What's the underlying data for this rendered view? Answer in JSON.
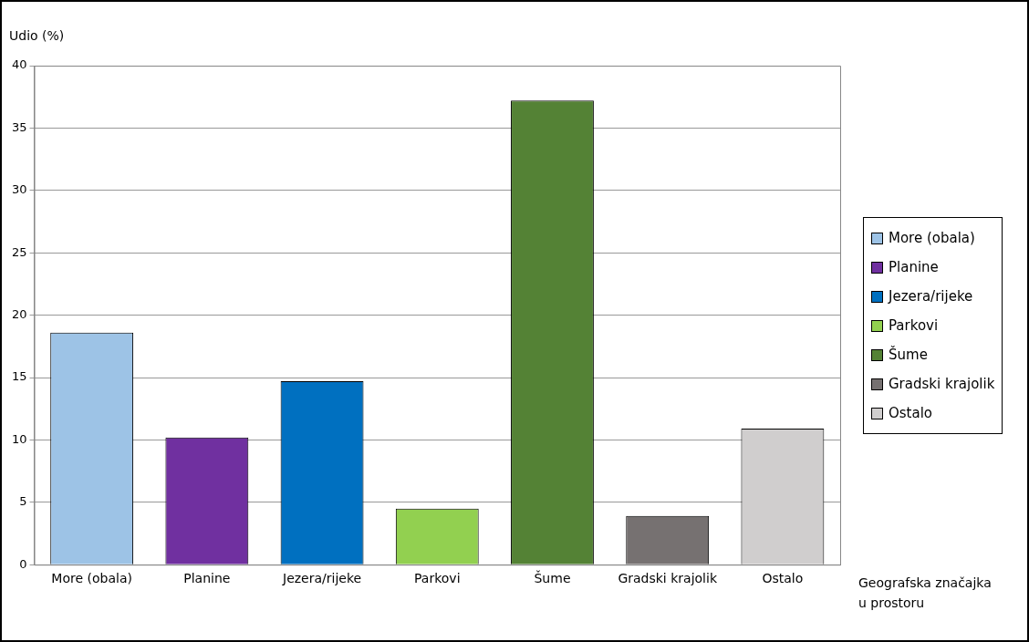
{
  "chart_data": {
    "type": "bar",
    "ylabel": "Udio (%)",
    "xlabel": "Geografska značajka u prostoru",
    "categories": [
      "More (obala)",
      "Planine",
      "Jezera/rijeke",
      "Parkovi",
      "Šume",
      "Gradski krajolik",
      "Ostalo"
    ],
    "series": [
      {
        "name": "More (obala)",
        "color": "#9dc3e6",
        "values": [
          18.6,
          null,
          null,
          null,
          null,
          null,
          null
        ]
      },
      {
        "name": "Planine",
        "color": "#7030a0",
        "values": [
          null,
          10.2,
          null,
          null,
          null,
          null,
          null
        ]
      },
      {
        "name": "Jezera/rijeke",
        "color": "#0070c0",
        "values": [
          null,
          null,
          14.7,
          null,
          null,
          null,
          null
        ]
      },
      {
        "name": "Parkovi",
        "color": "#92d050",
        "values": [
          null,
          null,
          null,
          4.5,
          null,
          null,
          null
        ]
      },
      {
        "name": "Šume",
        "color": "#548235",
        "values": [
          null,
          null,
          null,
          null,
          37.2,
          null,
          null
        ]
      },
      {
        "name": "Gradski krajolik",
        "color": "#767171",
        "values": [
          null,
          null,
          null,
          null,
          null,
          3.9,
          null
        ]
      },
      {
        "name": "Ostalo",
        "color": "#d0cece",
        "values": [
          null,
          null,
          null,
          null,
          null,
          null,
          10.9
        ]
      }
    ],
    "ylim": [
      0,
      40
    ],
    "yticks": [
      0,
      5,
      10,
      15,
      20,
      25,
      30,
      35,
      40
    ],
    "grid": "y",
    "legend": "right"
  }
}
